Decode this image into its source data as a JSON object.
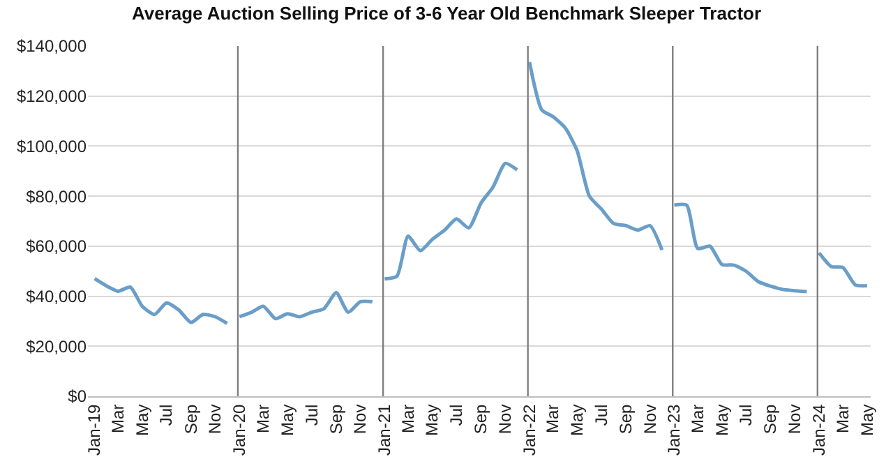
{
  "chart_data": {
    "type": "line",
    "title": "Average Auction Selling Price of 3-6 Year Old Benchmark Sleeper Tractor",
    "x": [
      "2019-01",
      "2019-02",
      "2019-03",
      "2019-04",
      "2019-05",
      "2019-06",
      "2019-07",
      "2019-08",
      "2019-09",
      "2019-10",
      "2019-11",
      "2019-12",
      "2020-01",
      "2020-02",
      "2020-03",
      "2020-04",
      "2020-05",
      "2020-06",
      "2020-07",
      "2020-08",
      "2020-09",
      "2020-10",
      "2020-11",
      "2020-12",
      "2021-01",
      "2021-02",
      "2021-03",
      "2021-04",
      "2021-05",
      "2021-06",
      "2021-07",
      "2021-08",
      "2021-09",
      "2021-10",
      "2021-11",
      "2021-12",
      "2022-01",
      "2022-02",
      "2022-03",
      "2022-04",
      "2022-05",
      "2022-06",
      "2022-07",
      "2022-08",
      "2022-09",
      "2022-10",
      "2022-11",
      "2022-12",
      "2023-01",
      "2023-02",
      "2023-03",
      "2023-04",
      "2023-05",
      "2023-06",
      "2023-07",
      "2023-08",
      "2023-09",
      "2023-10",
      "2023-11",
      "2023-12",
      "2024-01",
      "2024-02",
      "2024-03",
      "2024-04",
      "2024-05"
    ],
    "xlim": [
      "2018-12-15",
      "2024-05-10"
    ],
    "xticks": [
      {
        "value": "2019-01",
        "label": "Jan-19"
      },
      {
        "value": "2019-03",
        "label": "Mar"
      },
      {
        "value": "2019-05",
        "label": "May"
      },
      {
        "value": "2019-07",
        "label": "Jul"
      },
      {
        "value": "2019-09",
        "label": "Sep"
      },
      {
        "value": "2019-11",
        "label": "Nov"
      },
      {
        "value": "2020-01",
        "label": "Jan-20"
      },
      {
        "value": "2020-03",
        "label": "Mar"
      },
      {
        "value": "2020-05",
        "label": "May"
      },
      {
        "value": "2020-07",
        "label": "Jul"
      },
      {
        "value": "2020-09",
        "label": "Sep"
      },
      {
        "value": "2020-11",
        "label": "Nov"
      },
      {
        "value": "2021-01",
        "label": "Jan-21"
      },
      {
        "value": "2021-03",
        "label": "Mar"
      },
      {
        "value": "2021-05",
        "label": "May"
      },
      {
        "value": "2021-07",
        "label": "Jul"
      },
      {
        "value": "2021-09",
        "label": "Sep"
      },
      {
        "value": "2021-11",
        "label": "Nov"
      },
      {
        "value": "2022-01",
        "label": "Jan-22"
      },
      {
        "value": "2022-03",
        "label": "Mar"
      },
      {
        "value": "2022-05",
        "label": "May"
      },
      {
        "value": "2022-07",
        "label": "Jul"
      },
      {
        "value": "2022-09",
        "label": "Sep"
      },
      {
        "value": "2022-11",
        "label": "Nov"
      },
      {
        "value": "2023-01",
        "label": "Jan-23"
      },
      {
        "value": "2023-03",
        "label": "Mar"
      },
      {
        "value": "2023-05",
        "label": "May"
      },
      {
        "value": "2023-07",
        "label": "Jul"
      },
      {
        "value": "2023-09",
        "label": "Sep"
      },
      {
        "value": "2023-11",
        "label": "Nov"
      },
      {
        "value": "2024-01",
        "label": "Jan-24"
      },
      {
        "value": "2024-03",
        "label": "Mar"
      },
      {
        "value": "2024-05",
        "label": "May"
      }
    ],
    "series": [
      {
        "color": "#6a9ec8",
        "values": [
          47000,
          44000,
          42000,
          43600,
          36000,
          32700,
          37300,
          34500,
          29500,
          32700,
          31800,
          29100,
          null,
          null,
          null,
          null,
          null,
          null,
          null,
          null,
          null,
          null,
          null,
          null,
          null,
          null,
          null,
          null,
          null,
          null,
          null,
          null,
          null,
          null,
          null,
          null,
          null,
          null,
          null,
          null,
          null,
          null,
          null,
          null,
          null,
          null,
          null,
          null,
          null,
          null,
          null,
          null,
          null,
          null,
          null,
          null,
          null,
          null,
          null,
          null,
          null,
          null,
          null,
          null,
          null
        ]
      },
      {
        "color": "#6a9ec8",
        "values": [
          null,
          null,
          null,
          null,
          null,
          null,
          null,
          null,
          null,
          null,
          null,
          null,
          31800,
          33600,
          36000,
          31000,
          33000,
          31800,
          33600,
          35000,
          41400,
          33600,
          37800,
          37800,
          null,
          null,
          null,
          null,
          null,
          null,
          null,
          null,
          null,
          null,
          null,
          null,
          null,
          null,
          null,
          null,
          null,
          null,
          null,
          null,
          null,
          null,
          null,
          null,
          null,
          null,
          null,
          null,
          null,
          null,
          null,
          null,
          null,
          null,
          null,
          null,
          null,
          null,
          null,
          null,
          null
        ]
      },
      {
        "color": "#6a9ec8",
        "values": [
          null,
          null,
          null,
          null,
          null,
          null,
          null,
          null,
          null,
          null,
          null,
          null,
          null,
          null,
          null,
          null,
          null,
          null,
          null,
          null,
          null,
          null,
          null,
          null,
          46900,
          48000,
          64000,
          58200,
          62700,
          66400,
          70900,
          67300,
          77300,
          83600,
          93100,
          90500,
          null,
          null,
          null,
          null,
          null,
          null,
          null,
          null,
          null,
          null,
          null,
          null,
          null,
          null,
          null,
          null,
          null,
          null,
          null,
          null,
          null,
          null,
          null,
          null,
          null,
          null,
          null,
          null,
          null
        ]
      },
      {
        "color": "#6a9ec8",
        "values": [
          null,
          null,
          null,
          null,
          null,
          null,
          null,
          null,
          null,
          null,
          null,
          null,
          null,
          null,
          null,
          null,
          null,
          null,
          null,
          null,
          null,
          null,
          null,
          null,
          null,
          null,
          null,
          null,
          null,
          null,
          null,
          null,
          null,
          null,
          null,
          null,
          133600,
          114500,
          111800,
          107300,
          98200,
          80000,
          74900,
          69100,
          68200,
          66400,
          68200,
          58500,
          null,
          null,
          null,
          null,
          null,
          null,
          null,
          null,
          null,
          null,
          null,
          null,
          null,
          null,
          null,
          null,
          null
        ]
      },
      {
        "color": "#6a9ec8",
        "values": [
          null,
          null,
          null,
          null,
          null,
          null,
          null,
          null,
          null,
          null,
          null,
          null,
          null,
          null,
          null,
          null,
          null,
          null,
          null,
          null,
          null,
          null,
          null,
          null,
          null,
          null,
          null,
          null,
          null,
          null,
          null,
          null,
          null,
          null,
          null,
          null,
          null,
          null,
          null,
          null,
          null,
          null,
          null,
          null,
          null,
          null,
          null,
          null,
          76400,
          76400,
          59100,
          60000,
          52700,
          52400,
          50000,
          45800,
          44000,
          42700,
          42200,
          41800,
          null,
          null,
          null,
          null,
          null
        ]
      },
      {
        "color": "#6a9ec8",
        "values": [
          null,
          null,
          null,
          null,
          null,
          null,
          null,
          null,
          null,
          null,
          null,
          null,
          null,
          null,
          null,
          null,
          null,
          null,
          null,
          null,
          null,
          null,
          null,
          null,
          null,
          null,
          null,
          null,
          null,
          null,
          null,
          null,
          null,
          null,
          null,
          null,
          null,
          null,
          null,
          null,
          null,
          null,
          null,
          null,
          null,
          null,
          null,
          null,
          null,
          null,
          null,
          null,
          null,
          null,
          null,
          null,
          null,
          null,
          null,
          null,
          57300,
          51800,
          51500,
          44500,
          44200
        ]
      }
    ],
    "ylim": [
      0,
      140000
    ],
    "yticks": [
      {
        "value": 0,
        "label": "$0"
      },
      {
        "value": 20000,
        "label": "$20,000"
      },
      {
        "value": 40000,
        "label": "$40,000"
      },
      {
        "value": 60000,
        "label": "$60,000"
      },
      {
        "value": 80000,
        "label": "$80,000"
      },
      {
        "value": 100000,
        "label": "$100,000"
      },
      {
        "value": 120000,
        "label": "$120,000"
      },
      {
        "value": 140000,
        "label": "$140,000"
      }
    ],
    "ref_lines": [
      {
        "axis": "x",
        "value": "2019-12-28",
        "color": "#7f7f7f"
      },
      {
        "axis": "x",
        "value": "2020-12-28",
        "color": "#7f7f7f"
      },
      {
        "axis": "x",
        "value": "2021-12-28",
        "color": "#7f7f7f"
      },
      {
        "axis": "x",
        "value": "2022-12-28",
        "color": "#7f7f7f"
      },
      {
        "axis": "x",
        "value": "2023-12-28",
        "color": "#7f7f7f"
      }
    ],
    "grid": "y",
    "marker": "none",
    "line_style": "solid"
  }
}
